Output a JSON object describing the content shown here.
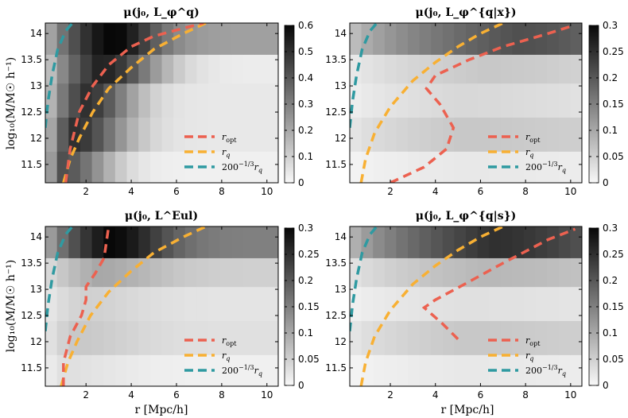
{
  "figure": {
    "ylabel": "log₁₀(M/M☉ h⁻¹)",
    "xlabel": "r [Mpc/h]"
  },
  "chart_data": [
    {
      "type": "heatmap",
      "title": "μ(j₀, L_φ^q)",
      "xlabel": "",
      "ylabel": "log₁₀(M/M☉ h⁻¹)",
      "xlim": [
        0.2,
        10.5
      ],
      "ylim": [
        11.15,
        14.2
      ],
      "xticks": [
        2,
        4,
        6,
        8,
        10
      ],
      "yticks": [
        11.5,
        12,
        12.5,
        13,
        13.5,
        14
      ],
      "mass_bin_edges": [
        11.15,
        11.75,
        12.4,
        13.05,
        13.6,
        14.2
      ],
      "colorbar": {
        "min": 0,
        "max": 0.6,
        "ticks": [
          0,
          0.1,
          0.2,
          0.3,
          0.4,
          0.5,
          0.6
        ]
      },
      "grid": false,
      "legend": {
        "position": "bottom-right",
        "entries": [
          "r_opt",
          "r_q",
          "200^{-1/3} r_q"
        ]
      },
      "legend_labels": {
        "r_opt": "r",
        "r_opt_sub": "opt",
        "r_q": "r",
        "r_q_sub": "q",
        "r200_pre": "200",
        "r200_exp": "−1/3",
        "r200_r": "r",
        "r200_sub": "q"
      },
      "rows_peak": [
        0.42,
        0.5,
        0.5,
        0.54,
        0.62
      ],
      "rows_peak_r": [
        0.9,
        1.4,
        1.9,
        2.6,
        3.0
      ],
      "rows_floor": [
        0.02,
        0.04,
        0.04,
        0.03,
        0.22
      ],
      "rows_width": [
        2.2,
        2.4,
        2.2,
        2.6,
        2.2
      ],
      "r_opt": {
        "x": [
          1.1,
          1.3,
          1.7,
          2.3,
          3.0,
          4.0,
          5.0,
          6.3,
          7.2
        ],
        "y": [
          11.15,
          11.8,
          12.5,
          13.0,
          13.4,
          13.75,
          13.95,
          14.1,
          14.2
        ]
      },
      "r_q": {
        "x": [
          1.0,
          1.3,
          1.7,
          2.3,
          3.0,
          4.0,
          5.0,
          6.3,
          7.3
        ],
        "y": [
          11.15,
          11.6,
          12.0,
          12.5,
          12.95,
          13.35,
          13.7,
          14.0,
          14.2
        ]
      },
      "r_200": {
        "x": [
          0.2,
          0.32,
          0.5,
          0.75,
          1.1,
          1.4
        ],
        "y": [
          12.2,
          12.7,
          13.2,
          13.7,
          14.05,
          14.2
        ]
      }
    },
    {
      "type": "heatmap",
      "title": "μ(j₀, L_φ^{q|x})",
      "xlabel": "",
      "ylabel": "",
      "xlim": [
        0.2,
        10.5
      ],
      "ylim": [
        11.15,
        14.2
      ],
      "xticks": [
        2,
        4,
        6,
        8,
        10
      ],
      "yticks": [
        11.5,
        12,
        12.5,
        13,
        13.5,
        14
      ],
      "mass_bin_edges": [
        11.15,
        11.75,
        12.4,
        13.05,
        13.6,
        14.2
      ],
      "colorbar": {
        "min": 0,
        "max": 0.3,
        "ticks": [
          0,
          0.05,
          0.1,
          0.15,
          0.2,
          0.25,
          0.3
        ]
      },
      "grid": false,
      "legend": {
        "position": "bottom-right",
        "entries": [
          "r_opt",
          "r_q",
          "200^{-1/3} r_q"
        ]
      },
      "legend_labels": {
        "r_opt": "r",
        "r_opt_sub": "opt",
        "r_q": "r",
        "r_q_sub": "q",
        "r200_pre": "200",
        "r200_exp": "−1/3",
        "r200_r": "r",
        "r200_sub": "q"
      },
      "rows_peak": [
        0.02,
        0.06,
        0.04,
        0.06,
        0.21
      ],
      "rows_peak_r": [
        5.0,
        5.0,
        5.0,
        6.0,
        7.5
      ],
      "rows_floor": [
        0.01,
        0.045,
        0.02,
        0.03,
        0.14
      ],
      "rows_width": [
        6,
        6,
        6,
        6,
        5
      ],
      "r_opt": {
        "x": [
          2.0,
          3.5,
          4.5,
          4.8,
          4.2,
          3.6,
          4.0,
          5.5,
          7.0,
          9.0,
          10.1
        ],
        "y": [
          11.15,
          11.45,
          11.8,
          12.2,
          12.65,
          12.95,
          13.2,
          13.5,
          13.75,
          14.0,
          14.15
        ]
      },
      "r_q": {
        "x": [
          0.7,
          0.9,
          1.3,
          2.0,
          3.0,
          4.0,
          5.0,
          6.0,
          7.0
        ],
        "y": [
          11.15,
          11.6,
          12.1,
          12.6,
          13.1,
          13.45,
          13.75,
          14.0,
          14.2
        ]
      },
      "r_200": {
        "x": [
          0.2,
          0.32,
          0.5,
          0.75,
          1.1,
          1.4
        ],
        "y": [
          12.2,
          12.7,
          13.2,
          13.7,
          14.05,
          14.2
        ]
      }
    },
    {
      "type": "heatmap",
      "title": "μ(j₀, L^Eul)",
      "xlabel": "r [Mpc/h]",
      "ylabel": "log₁₀(M/M☉ h⁻¹)",
      "xlim": [
        0.2,
        10.5
      ],
      "ylim": [
        11.15,
        14.2
      ],
      "xticks": [
        2,
        4,
        6,
        8,
        10
      ],
      "yticks": [
        11.5,
        12,
        12.5,
        13,
        13.5,
        14
      ],
      "mass_bin_edges": [
        11.15,
        11.75,
        12.4,
        13.05,
        13.6,
        14.2
      ],
      "colorbar": {
        "min": 0,
        "max": 0.3,
        "ticks": [
          0,
          0.05,
          0.1,
          0.15,
          0.2,
          0.25,
          0.3
        ]
      },
      "grid": false,
      "legend": {
        "position": "bottom-right",
        "entries": [
          "r_opt",
          "r_q",
          "200^{-1/3} r_q"
        ]
      },
      "legend_labels": {
        "r_opt": "r",
        "r_opt_sub": "opt",
        "r_q": "r",
        "r_q_sub": "q",
        "r200_pre": "200",
        "r200_exp": "−1/3",
        "r200_r": "r",
        "r200_sub": "q"
      },
      "rows_peak": [
        0.03,
        0.06,
        0.05,
        0.1,
        0.3
      ],
      "rows_peak_r": [
        1.0,
        1.5,
        1.8,
        2.5,
        3.0
      ],
      "rows_floor": [
        0.01,
        0.03,
        0.025,
        0.05,
        0.15
      ],
      "rows_width": [
        3,
        3,
        3,
        3,
        2.6
      ],
      "r_opt": {
        "x": [
          1.0,
          1.0,
          1.3,
          1.8,
          2.0,
          2.0,
          2.4,
          2.8,
          2.9,
          3.0
        ],
        "y": [
          11.15,
          11.6,
          12.1,
          12.5,
          12.8,
          13.05,
          13.3,
          13.6,
          13.9,
          14.2
        ]
      },
      "r_q": {
        "x": [
          0.9,
          1.2,
          1.6,
          2.2,
          3.0,
          4.0,
          5.0,
          6.3,
          7.3
        ],
        "y": [
          11.15,
          11.6,
          12.0,
          12.5,
          12.95,
          13.35,
          13.7,
          14.0,
          14.2
        ]
      },
      "r_200": {
        "x": [
          0.2,
          0.32,
          0.5,
          0.75,
          1.1,
          1.4
        ],
        "y": [
          12.2,
          12.7,
          13.2,
          13.7,
          14.05,
          14.2
        ]
      }
    },
    {
      "type": "heatmap",
      "title": "μ(j₀, L_φ^{q|s})",
      "xlabel": "r [Mpc/h]",
      "ylabel": "",
      "xlim": [
        0.2,
        10.5
      ],
      "ylim": [
        11.15,
        14.2
      ],
      "xticks": [
        2,
        4,
        6,
        8,
        10
      ],
      "yticks": [
        11.5,
        12,
        12.5,
        13,
        13.5,
        14
      ],
      "mass_bin_edges": [
        11.15,
        11.75,
        12.4,
        13.05,
        13.6,
        14.2
      ],
      "colorbar": {
        "min": 0,
        "max": 0.3,
        "ticks": [
          0,
          0.05,
          0.1,
          0.15,
          0.2,
          0.25,
          0.3
        ]
      },
      "grid": false,
      "legend": {
        "position": "bottom-right",
        "entries": [
          "r_opt",
          "r_q",
          "200^{-1/3} r_q"
        ]
      },
      "legend_labels": {
        "r_opt": "r",
        "r_opt_sub": "opt",
        "r_q": "r",
        "r_q_sub": "q",
        "r200_pre": "200",
        "r200_exp": "−1/3",
        "r200_r": "r",
        "r200_sub": "q"
      },
      "rows_peak": [
        0.02,
        0.06,
        0.03,
        0.08,
        0.25
      ],
      "rows_peak_r": [
        5.0,
        5.0,
        5.0,
        6.0,
        6.5
      ],
      "rows_floor": [
        0.01,
        0.045,
        0.02,
        0.05,
        0.16
      ],
      "rows_width": [
        6,
        6,
        6,
        6,
        5
      ],
      "r_opt": {
        "x": [
          5.0,
          4.3,
          3.5,
          4.0,
          5.3,
          7.0,
          9.0,
          10.2
        ],
        "y": [
          12.05,
          12.35,
          12.65,
          12.8,
          13.1,
          13.5,
          13.95,
          14.15
        ]
      },
      "r_q": {
        "x": [
          0.7,
          0.9,
          1.3,
          2.0,
          3.0,
          4.0,
          5.0,
          6.0,
          7.0
        ],
        "y": [
          11.15,
          11.6,
          12.1,
          12.6,
          13.1,
          13.45,
          13.75,
          14.0,
          14.2
        ]
      },
      "r_200": {
        "x": [
          0.2,
          0.32,
          0.5,
          0.75,
          1.1,
          1.4
        ],
        "y": [
          12.2,
          12.7,
          13.2,
          13.7,
          14.05,
          14.2
        ]
      }
    }
  ]
}
